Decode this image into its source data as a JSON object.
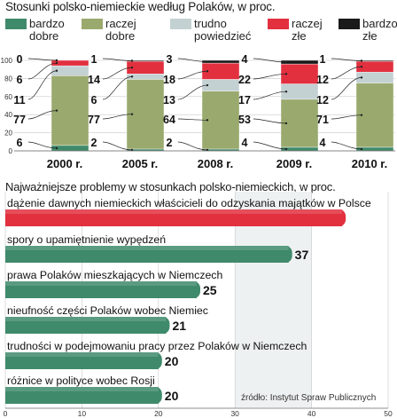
{
  "chart_data": [
    {
      "type": "bar",
      "stacked": true,
      "orientation": "vertical",
      "title": "Stosunki polsko-niemieckie według Polaków, w proc.",
      "categories": [
        "2000 r.",
        "2005 r.",
        "2008 r.",
        "2009 r.",
        "2010 r."
      ],
      "series": [
        {
          "name": "bardzo dobre",
          "color": "#3f8a6b",
          "values": [
            6,
            2,
            2,
            4,
            4
          ]
        },
        {
          "name": "raczej dobre",
          "color": "#9aaa6e",
          "values": [
            77,
            77,
            64,
            53,
            71
          ]
        },
        {
          "name": "trudno powiedzieć",
          "color": "#c4d1d3",
          "values": [
            11,
            6,
            13,
            17,
            12
          ]
        },
        {
          "name": "raczej złe",
          "color": "#e2303f",
          "values": [
            6,
            14,
            18,
            22,
            12
          ]
        },
        {
          "name": "bardzo złe",
          "color": "#1a1a1a",
          "values": [
            0,
            1,
            3,
            4,
            1
          ]
        }
      ],
      "ylim": [
        0,
        100
      ],
      "yticks": [
        0,
        20,
        40,
        60,
        80,
        100
      ]
    },
    {
      "type": "bar",
      "orientation": "horizontal",
      "title": "Najważniejsze problemy w stosunkach polsko-niemieckich, w proc.",
      "categories": [
        "dążenie dawnych niemieckich właścicieli do odzyskania majątków w Polsce",
        "spory o upamiętnienie wypędzeń",
        "prawa Polaków mieszkających w Niemczech",
        "nieufność części Polaków wobec Niemiec",
        "trudności w podejmowaniu pracy przez Polaków w Niemczech",
        "różnice w polityce wobec Rosji"
      ],
      "values": [
        44,
        37,
        25,
        21,
        20,
        20
      ],
      "highlight_color": "#e2303f",
      "bar_color": "#3f8a6b",
      "xlim": [
        0,
        50
      ],
      "xticks": [
        0,
        10,
        20,
        30,
        40,
        50
      ]
    }
  ],
  "source": "źródło: Instytut Spraw Publicznych"
}
